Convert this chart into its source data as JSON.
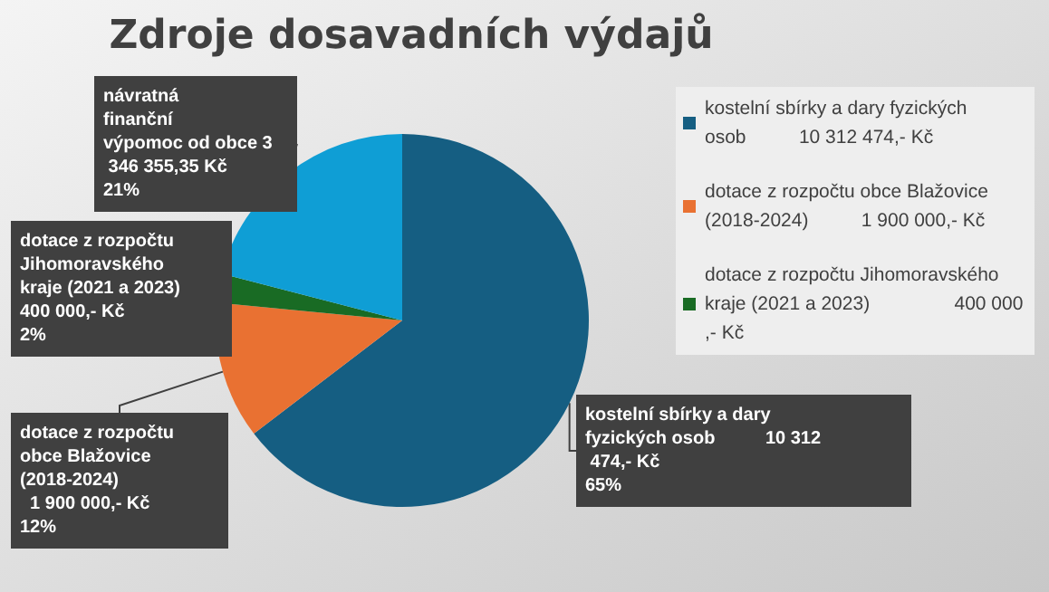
{
  "chart_data": {
    "type": "pie",
    "title": "Zdroje dosavadních výdajů",
    "categories": [
      "kostelní sbírky a dary fyzických osob          10 312 474,- Kč",
      "dotace z rozpočtu obce Blažovice (2018-2024)          1 900 000,- Kč",
      "dotace z rozpočtu Jihomoravského kraje (2021 a 2023)                400 000,- Kč",
      null
    ],
    "values": [
      10312474,
      1900000,
      400000,
      3346355.35
    ],
    "colors": [
      "#155e82",
      "#e97132",
      "#196b24",
      "#0f9ed5"
    ],
    "value_labels": [
      "kostelní sbírky a dary fyzických osob          10 312 474,- Kč\n65%",
      "dotace z rozpočtu obce Blažovice (2018-2024)          1 900 000,- Kč\n12%",
      "dotace z rozpočtu Jihomoravského kraje (2021 a 2023) 400 000,- Kč\n2%",
      "návratná finanční výpomoc od obce 3 346 355,35 Kč\n21%"
    ],
    "legend": "right"
  }
}
